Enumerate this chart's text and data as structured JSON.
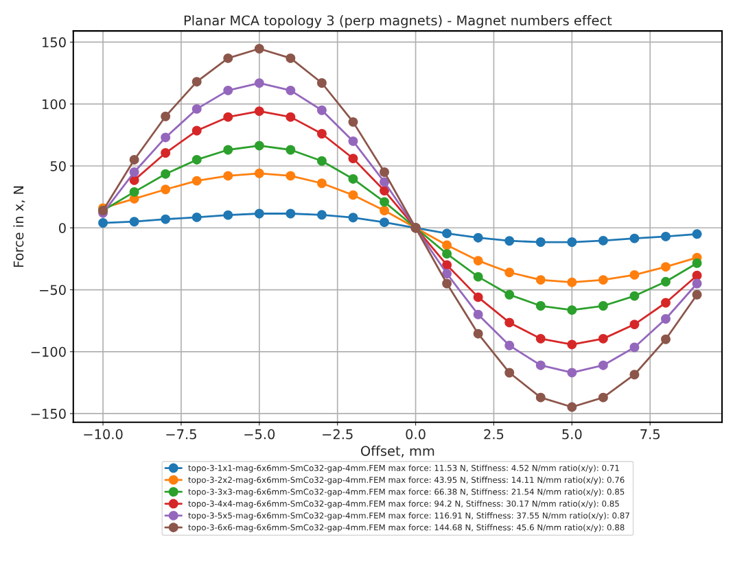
{
  "chart_data": {
    "type": "line",
    "title": "Planar MCA topology 3 (perp magnets) - Magnet numbers effect",
    "xlabel": "Offset, mm",
    "ylabel": "Force in x, N",
    "x": [
      -10,
      -9,
      -8,
      -7,
      -6,
      -5,
      -4,
      -3,
      -2,
      -1,
      0,
      1,
      2,
      3,
      4,
      5,
      6,
      7,
      8,
      9
    ],
    "xlim": [
      -10.95,
      9.8
    ],
    "xticks": [
      {
        "value": -10,
        "label": "−10.0"
      },
      {
        "value": -7.5,
        "label": "−7.5"
      },
      {
        "value": -5,
        "label": "−5.0"
      },
      {
        "value": -2.5,
        "label": "−2.5"
      },
      {
        "value": 0,
        "label": "0.0"
      },
      {
        "value": 2.5,
        "label": "2.5"
      },
      {
        "value": 5,
        "label": "5.0"
      },
      {
        "value": 7.5,
        "label": "7.5"
      }
    ],
    "ylim": [
      -157,
      159
    ],
    "yticks": [
      {
        "value": -150,
        "label": "−150"
      },
      {
        "value": -100,
        "label": "−100"
      },
      {
        "value": -50,
        "label": "−50"
      },
      0,
      50,
      100,
      150
    ],
    "grid": true,
    "marker": "circle",
    "line_style": "solid",
    "legend": "bottom",
    "series": [
      {
        "name": "topo-3-1x1-mag-6x6mm-SmCo32-gap-4mm.FEM max force: 11.53 N, Stiffness: 4.52 N/mm ratio(x/y): 0.71",
        "color": "#1f77b4",
        "values": [
          4,
          5,
          7,
          8.5,
          10.3,
          11.5,
          11.5,
          10.5,
          8.3,
          4.5,
          0,
          -4.5,
          -8,
          -10.5,
          -11.5,
          -11.5,
          -10.3,
          -8.5,
          -7,
          -5
        ]
      },
      {
        "name": "topo-3-2x2-mag-6x6mm-SmCo32-gap-4mm.FEM max force: 43.95 N, Stiffness: 14.11 N/mm ratio(x/y): 0.76",
        "color": "#ff7f0e",
        "values": [
          16,
          23.5,
          31,
          38,
          42,
          44,
          42,
          36,
          26.5,
          14,
          0,
          -14,
          -26.5,
          -36,
          -42,
          -44,
          -42,
          -38,
          -31.5,
          -24
        ]
      },
      {
        "name": "topo-3-3x3-mag-6x6mm-SmCo32-gap-4mm.FEM max force: 66.38 N, Stiffness: 21.54 N/mm ratio(x/y): 0.85",
        "color": "#2ca02c",
        "values": [
          14,
          29,
          43.5,
          55,
          63,
          66.4,
          63,
          54,
          39.5,
          21,
          0,
          -21,
          -39.5,
          -54,
          -63,
          -66.4,
          -63,
          -55,
          -43.5,
          -28.5
        ]
      },
      {
        "name": "topo-3-4x4-mag-6x6mm-SmCo32-gap-4mm.FEM max force: 94.2 N, Stiffness: 30.17 N/mm ratio(x/y): 0.85",
        "color": "#d62728",
        "values": [
          null,
          38.5,
          60.5,
          78.5,
          89.5,
          94.2,
          89.5,
          76,
          56,
          30,
          0,
          -30,
          -56,
          -76.5,
          -89.5,
          -94.2,
          -89.5,
          -78,
          -60.5,
          -38.5
        ]
      },
      {
        "name": "topo-3-5x5-mag-6x6mm-SmCo32-gap-4mm.FEM max force: 116.91 N, Stiffness: 37.55 N/mm ratio(x/y): 0.87",
        "color": "#9467bd",
        "values": [
          12,
          45,
          73,
          96,
          111,
          116.9,
          111,
          95,
          70,
          37,
          0,
          -37,
          -70,
          -95,
          -111,
          -116.9,
          -111,
          -96.5,
          -73.5,
          -45
        ]
      },
      {
        "name": "topo-3-6x6-mag-6x6mm-SmCo32-gap-4mm.FEM max force: 144.68 N, Stiffness: 45.6 N/mm ratio(x/y): 0.88",
        "color": "#8c564b",
        "values": [
          14,
          55,
          90,
          118,
          137,
          144.7,
          137,
          117,
          85.5,
          45,
          0,
          -45,
          -85.5,
          -117,
          -137,
          -144.7,
          -137,
          -118.5,
          -90,
          -54
        ]
      }
    ]
  }
}
